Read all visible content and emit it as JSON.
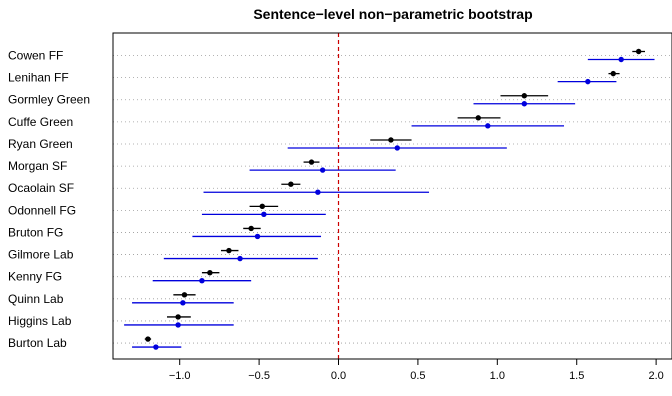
{
  "chart_data": {
    "type": "scatter",
    "title": "Sentence−level non−parametric bootstrap",
    "xlabel": "",
    "ylabel": "",
    "xlim": [
      -1.42,
      2.1
    ],
    "xticks": [
      -1.0,
      -0.5,
      0.0,
      0.5,
      1.0,
      1.5,
      2.0
    ],
    "xtick_labels": [
      "−1.0",
      "−0.5",
      "0.0",
      "0.5",
      "1.0",
      "1.5",
      "2.0"
    ],
    "reference_line": {
      "x": 0.0,
      "color": "#cc0000",
      "style": "dashed"
    },
    "grid": "dotted horizontal",
    "categories": [
      "Cowen FF",
      "Lenihan FF",
      "Gormley Green",
      "Cuffe Green",
      "Ryan Green",
      "Morgan SF",
      "Ocaolain SF",
      "Odonnell FG",
      "Bruton FG",
      "Gilmore Lab",
      "Kenny FG",
      "Quinn Lab",
      "Higgins Lab",
      "Burton Lab"
    ],
    "series": [
      {
        "color": "#000000",
        "points": [
          1.89,
          1.73,
          1.17,
          0.88,
          0.33,
          -0.17,
          -0.3,
          -0.48,
          -0.55,
          -0.69,
          -0.81,
          -0.97,
          -1.01,
          -1.2
        ],
        "low": [
          1.85,
          1.7,
          1.02,
          0.75,
          0.2,
          -0.22,
          -0.36,
          -0.56,
          -0.6,
          -0.74,
          -0.86,
          -1.04,
          -1.08,
          -1.22
        ],
        "high": [
          1.93,
          1.77,
          1.32,
          1.02,
          0.46,
          -0.12,
          -0.24,
          -0.38,
          -0.49,
          -0.63,
          -0.75,
          -0.9,
          -0.93,
          -1.18
        ]
      },
      {
        "color": "#0000dd",
        "points": [
          1.78,
          1.57,
          1.17,
          0.94,
          0.37,
          -0.1,
          -0.13,
          -0.47,
          -0.51,
          -0.62,
          -0.86,
          -0.98,
          -1.01,
          -1.15
        ],
        "low": [
          1.57,
          1.38,
          0.85,
          0.46,
          -0.32,
          -0.56,
          -0.85,
          -0.86,
          -0.92,
          -1.1,
          -1.17,
          -1.3,
          -1.35,
          -1.3
        ],
        "high": [
          1.99,
          1.75,
          1.49,
          1.42,
          1.06,
          0.36,
          0.57,
          -0.08,
          -0.11,
          -0.13,
          -0.55,
          -0.66,
          -0.66,
          -0.99
        ]
      }
    ]
  }
}
